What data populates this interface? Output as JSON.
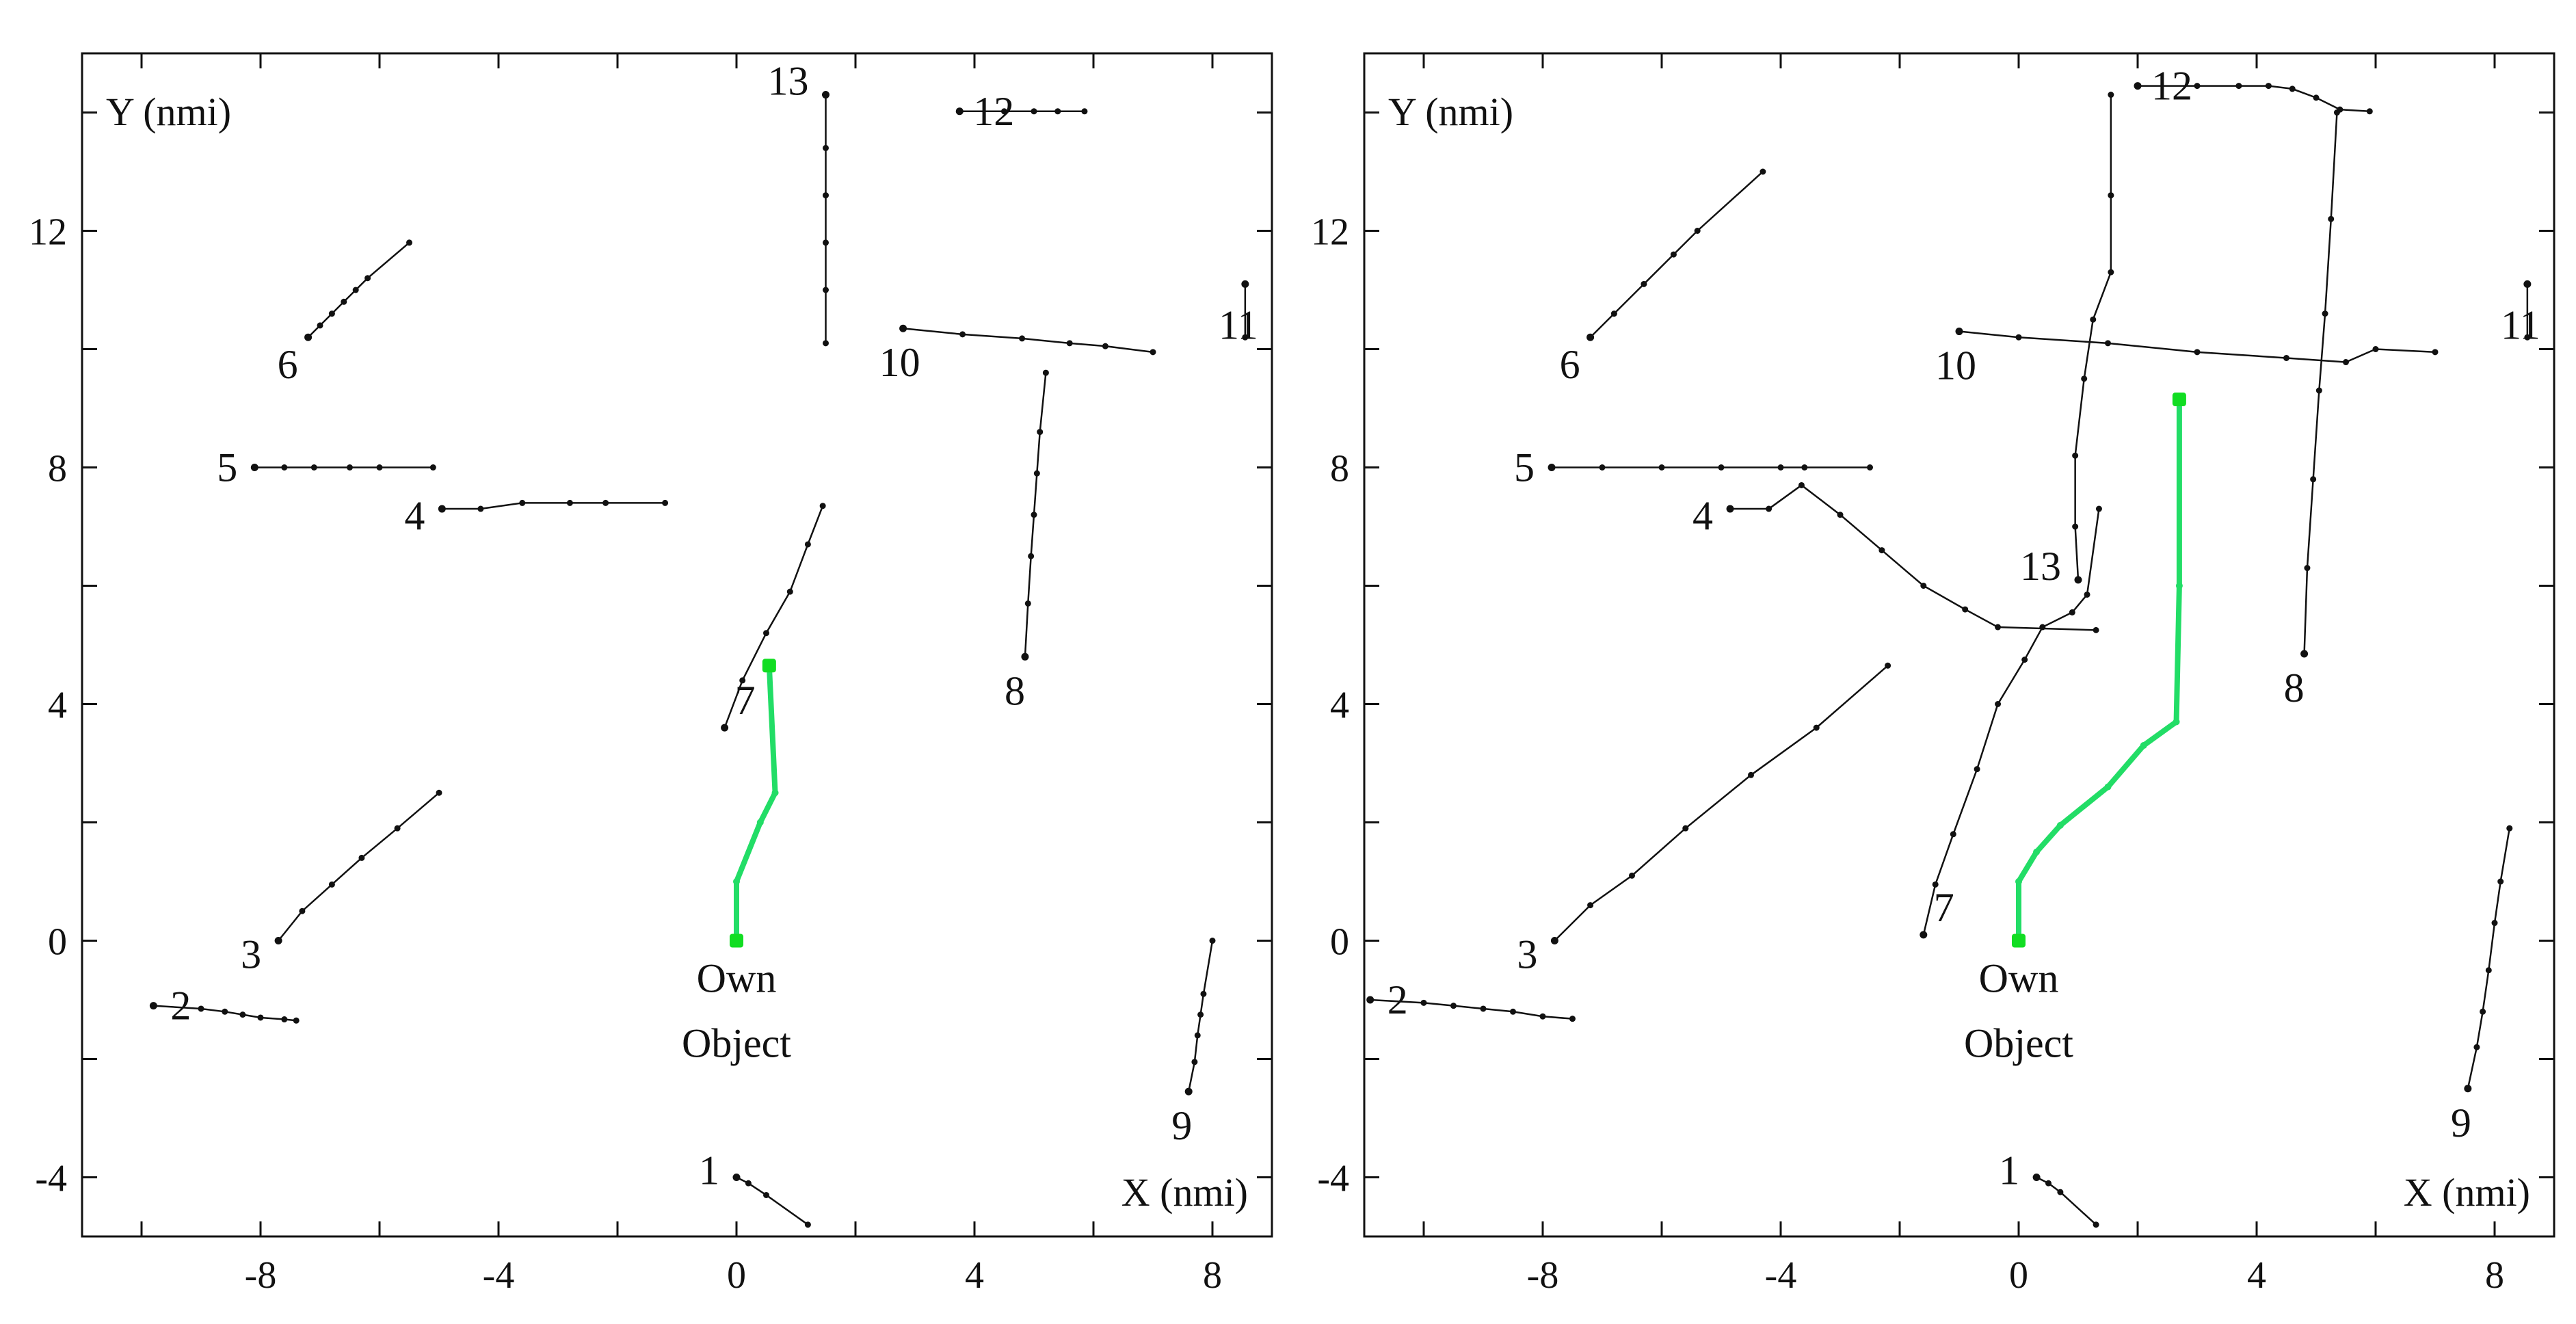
{
  "colors": {
    "axis": "#111111",
    "track": "#111111",
    "own_path": "#22dd66",
    "own_marker": "#11dd22",
    "background": "#ffffff"
  },
  "chart_data": [
    {
      "type": "scatter",
      "xlabel": "X (nmi)",
      "ylabel": "Y (nmi)",
      "xlim": [
        -11,
        9
      ],
      "ylim": [
        -5,
        15
      ],
      "xticks": [
        -8,
        -4,
        0,
        4,
        8
      ],
      "yticks": [
        -4,
        0,
        4,
        8,
        12
      ],
      "grid": false,
      "own_object": {
        "label_line1": "Own",
        "label_line2": "Object",
        "path": [
          [
            0,
            0
          ],
          [
            0,
            1
          ],
          [
            0.4,
            2
          ],
          [
            0.65,
            2.5
          ],
          [
            0.55,
            4.65
          ]
        ]
      },
      "targets": [
        {
          "label": "1",
          "path": [
            [
              0,
              -4
            ],
            [
              0.2,
              -4.1
            ],
            [
              0.5,
              -4.3
            ],
            [
              1.2,
              -4.8
            ]
          ]
        },
        {
          "label": "2",
          "path": [
            [
              -9.8,
              -1.1
            ],
            [
              -9,
              -1.15
            ],
            [
              -8.6,
              -1.2
            ],
            [
              -8.3,
              -1.25
            ],
            [
              -8,
              -1.3
            ],
            [
              -7.6,
              -1.33
            ],
            [
              -7.4,
              -1.35
            ]
          ]
        },
        {
          "label": "3",
          "path": [
            [
              -7.7,
              0
            ],
            [
              -7.3,
              0.5
            ],
            [
              -6.8,
              0.95
            ],
            [
              -6.3,
              1.4
            ],
            [
              -5.7,
              1.9
            ],
            [
              -5,
              2.5
            ]
          ]
        },
        {
          "label": "4",
          "path": [
            [
              -4.95,
              7.3
            ],
            [
              -4.3,
              7.3
            ],
            [
              -3.6,
              7.4
            ],
            [
              -2.8,
              7.4
            ],
            [
              -2.2,
              7.4
            ],
            [
              -1.2,
              7.4
            ]
          ]
        },
        {
          "label": "5",
          "path": [
            [
              -8.1,
              8
            ],
            [
              -7.6,
              8
            ],
            [
              -7.1,
              8
            ],
            [
              -6.5,
              8
            ],
            [
              -6,
              8
            ],
            [
              -5.1,
              8
            ]
          ]
        },
        {
          "label": "6",
          "path": [
            [
              -7.2,
              10.2
            ],
            [
              -7,
              10.4
            ],
            [
              -6.8,
              10.6
            ],
            [
              -6.6,
              10.8
            ],
            [
              -6.4,
              11
            ],
            [
              -6.2,
              11.2
            ],
            [
              -5.5,
              11.8
            ]
          ]
        },
        {
          "label": "7",
          "path": [
            [
              -0.2,
              3.6
            ],
            [
              0.1,
              4.4
            ],
            [
              0.5,
              5.2
            ],
            [
              0.9,
              5.9
            ],
            [
              1.2,
              6.7
            ],
            [
              1.45,
              7.35
            ]
          ]
        },
        {
          "label": "8",
          "path": [
            [
              4.85,
              4.8
            ],
            [
              4.9,
              5.7
            ],
            [
              4.95,
              6.5
            ],
            [
              5.0,
              7.2
            ],
            [
              5.05,
              7.9
            ],
            [
              5.1,
              8.6
            ],
            [
              5.2,
              9.6
            ]
          ]
        },
        {
          "label": "9",
          "path": [
            [
              7.6,
              -2.55
            ],
            [
              7.7,
              -2.05
            ],
            [
              7.75,
              -1.6
            ],
            [
              7.8,
              -1.25
            ],
            [
              7.85,
              -0.9
            ],
            [
              8,
              0
            ]
          ]
        },
        {
          "label": "10",
          "path": [
            [
              2.8,
              10.35
            ],
            [
              3.8,
              10.25
            ],
            [
              4.8,
              10.18
            ],
            [
              5.6,
              10.1
            ],
            [
              6.2,
              10.05
            ],
            [
              7.0,
              9.95
            ]
          ]
        },
        {
          "label": "11",
          "path": [
            [
              8.55,
              11.1
            ],
            [
              8.55,
              10.2
            ]
          ]
        },
        {
          "label": "12",
          "path": [
            [
              3.75,
              14.02
            ],
            [
              4.5,
              14.02
            ],
            [
              5.0,
              14.02
            ],
            [
              5.4,
              14.02
            ],
            [
              5.85,
              14.02
            ]
          ]
        },
        {
          "label": "13",
          "path": [
            [
              1.5,
              14.3
            ],
            [
              1.5,
              13.4
            ],
            [
              1.5,
              12.6
            ],
            [
              1.5,
              11.8
            ],
            [
              1.5,
              11.0
            ],
            [
              1.5,
              10.1
            ]
          ]
        }
      ]
    },
    {
      "type": "scatter",
      "xlabel": "X (nmi)",
      "ylabel": "Y (nmi)",
      "xlim": [
        -11,
        9
      ],
      "ylim": [
        -5,
        15
      ],
      "xticks": [
        -8,
        -4,
        0,
        4,
        8
      ],
      "yticks": [
        -4,
        0,
        4,
        8,
        12
      ],
      "grid": false,
      "own_object": {
        "label_line1": "Own",
        "label_line2": "Object",
        "path": [
          [
            0,
            0
          ],
          [
            0,
            1
          ],
          [
            0.3,
            1.5
          ],
          [
            0.7,
            1.95
          ],
          [
            1.5,
            2.6
          ],
          [
            2.1,
            3.3
          ],
          [
            2.65,
            3.7
          ],
          [
            2.7,
            6.0
          ],
          [
            2.7,
            9.15
          ]
        ]
      },
      "targets": [
        {
          "label": "1",
          "path": [
            [
              0.3,
              -4
            ],
            [
              0.5,
              -4.1
            ],
            [
              0.7,
              -4.25
            ],
            [
              1.3,
              -4.8
            ]
          ]
        },
        {
          "label": "2",
          "path": [
            [
              -10.9,
              -1.0
            ],
            [
              -10,
              -1.05
            ],
            [
              -9.5,
              -1.1
            ],
            [
              -9,
              -1.15
            ],
            [
              -8.5,
              -1.2
            ],
            [
              -8,
              -1.28
            ],
            [
              -7.5,
              -1.32
            ]
          ]
        },
        {
          "label": "3",
          "path": [
            [
              -7.8,
              0
            ],
            [
              -7.2,
              0.6
            ],
            [
              -6.5,
              1.1
            ],
            [
              -5.6,
              1.9
            ],
            [
              -4.5,
              2.8
            ],
            [
              -3.4,
              3.6
            ],
            [
              -2.2,
              4.65
            ]
          ]
        },
        {
          "label": "4",
          "path": [
            [
              -4.85,
              7.3
            ],
            [
              -4.2,
              7.3
            ],
            [
              -3.65,
              7.7
            ],
            [
              -3.0,
              7.2
            ],
            [
              -2.3,
              6.6
            ],
            [
              -1.6,
              6.0
            ],
            [
              -0.9,
              5.6
            ],
            [
              -0.35,
              5.3
            ],
            [
              1.3,
              5.25
            ]
          ]
        },
        {
          "label": "5",
          "path": [
            [
              -7.85,
              8
            ],
            [
              -7.0,
              8
            ],
            [
              -6.0,
              8
            ],
            [
              -5.0,
              8
            ],
            [
              -4.0,
              8
            ],
            [
              -3.6,
              8
            ],
            [
              -2.5,
              8
            ]
          ]
        },
        {
          "label": "6",
          "path": [
            [
              -7.2,
              10.2
            ],
            [
              -6.8,
              10.6
            ],
            [
              -6.3,
              11.1
            ],
            [
              -5.8,
              11.6
            ],
            [
              -5.4,
              12.0
            ],
            [
              -4.3,
              13.0
            ]
          ]
        },
        {
          "label": "7",
          "path": [
            [
              -1.6,
              0.1
            ],
            [
              -1.4,
              0.95
            ],
            [
              -1.1,
              1.8
            ],
            [
              -0.7,
              2.9
            ],
            [
              -0.35,
              4.0
            ],
            [
              0.1,
              4.75
            ],
            [
              0.4,
              5.3
            ],
            [
              0.9,
              5.55
            ],
            [
              1.15,
              5.85
            ],
            [
              1.35,
              7.3
            ]
          ]
        },
        {
          "label": "8",
          "path": [
            [
              4.8,
              4.85
            ],
            [
              4.85,
              6.3
            ],
            [
              4.95,
              7.8
            ],
            [
              5.05,
              9.3
            ],
            [
              5.15,
              10.6
            ],
            [
              5.25,
              12.2
            ],
            [
              5.35,
              14.0
            ]
          ]
        },
        {
          "label": "9",
          "path": [
            [
              7.55,
              -2.5
            ],
            [
              7.7,
              -1.8
            ],
            [
              7.8,
              -1.2
            ],
            [
              7.9,
              -0.5
            ],
            [
              8.0,
              0.3
            ],
            [
              8.1,
              1.0
            ],
            [
              8.25,
              1.9
            ]
          ]
        },
        {
          "label": "10",
          "path": [
            [
              -1.0,
              10.3
            ],
            [
              0,
              10.2
            ],
            [
              1.5,
              10.1
            ],
            [
              3.0,
              9.95
            ],
            [
              4.5,
              9.85
            ],
            [
              5.5,
              9.78
            ],
            [
              6.0,
              10.0
            ],
            [
              7.0,
              9.95
            ]
          ]
        },
        {
          "label": "11",
          "path": [
            [
              8.55,
              11.1
            ],
            [
              8.55,
              10.2
            ]
          ]
        },
        {
          "label": "12",
          "path": [
            [
              2.0,
              14.45
            ],
            [
              3.0,
              14.45
            ],
            [
              3.7,
              14.45
            ],
            [
              4.2,
              14.45
            ],
            [
              4.6,
              14.4
            ],
            [
              5.0,
              14.25
            ],
            [
              5.4,
              14.05
            ],
            [
              5.9,
              14.02
            ]
          ]
        },
        {
          "label": "13",
          "path": [
            [
              1.0,
              6.1
            ],
            [
              0.95,
              7.0
            ],
            [
              0.95,
              8.2
            ],
            [
              1.1,
              9.5
            ],
            [
              1.25,
              10.5
            ],
            [
              1.55,
              11.3
            ],
            [
              1.55,
              12.6
            ],
            [
              1.55,
              14.3
            ]
          ]
        }
      ]
    }
  ]
}
